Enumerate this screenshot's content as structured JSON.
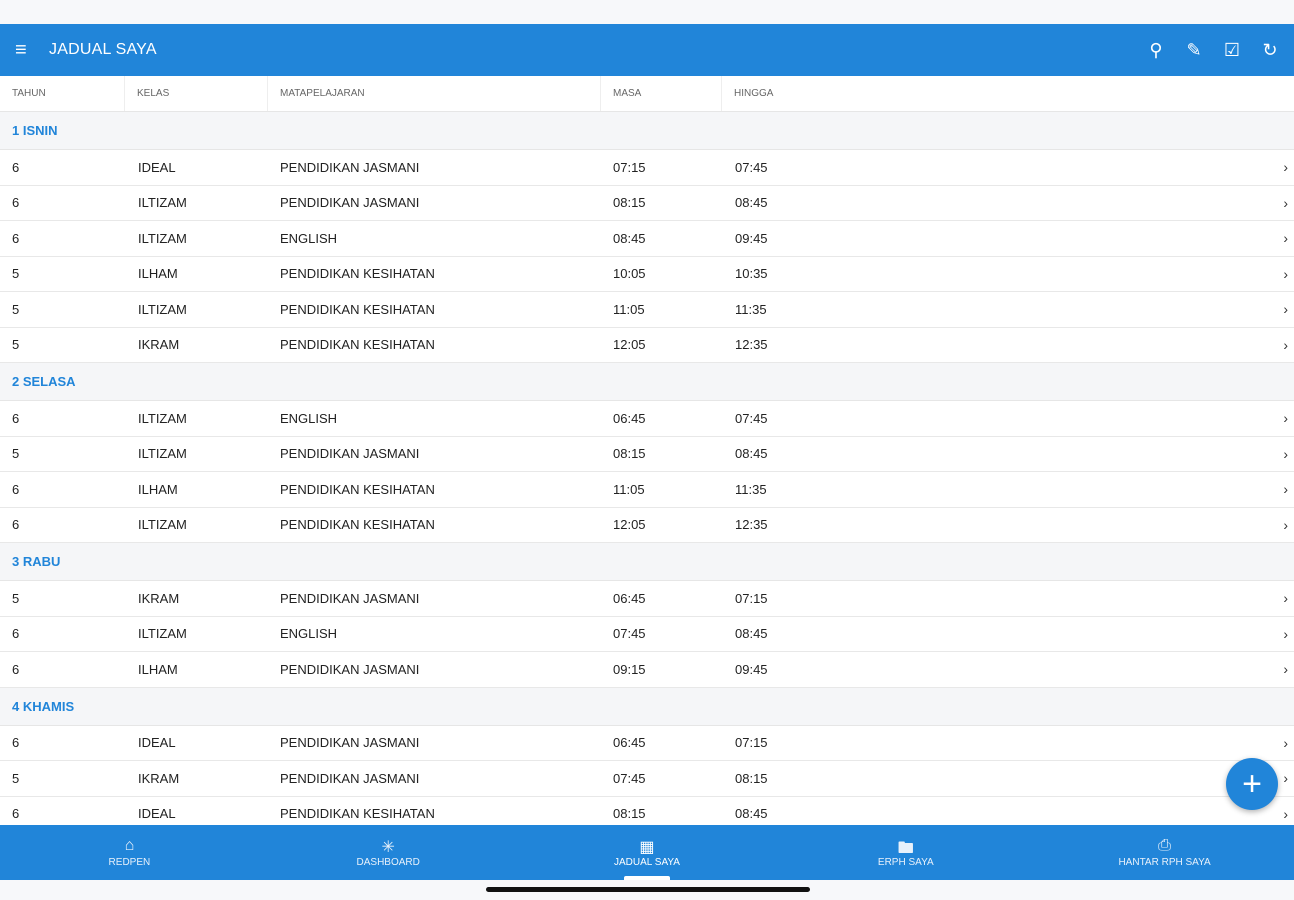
{
  "header": {
    "title": "JADUAL SAYA",
    "actions": [
      "search-icon",
      "edit-icon",
      "checkbox-icon",
      "refresh-icon"
    ]
  },
  "columns": [
    "TAHUN",
    "KELAS",
    "MATAPELAJARAN",
    "MASA",
    "HINGGA"
  ],
  "days": [
    {
      "label": "1 ISNIN",
      "rows": [
        [
          "6",
          "IDEAL",
          "PENDIDIKAN JASMANI",
          "07:15",
          "07:45"
        ],
        [
          "6",
          "ILTIZAM",
          "PENDIDIKAN JASMANI",
          "08:15",
          "08:45"
        ],
        [
          "6",
          "ILTIZAM",
          "ENGLISH",
          "08:45",
          "09:45"
        ],
        [
          "5",
          "ILHAM",
          "PENDIDIKAN KESIHATAN",
          "10:05",
          "10:35"
        ],
        [
          "5",
          "ILTIZAM",
          "PENDIDIKAN KESIHATAN",
          "11:05",
          "11:35"
        ],
        [
          "5",
          "IKRAM",
          "PENDIDIKAN KESIHATAN",
          "12:05",
          "12:35"
        ]
      ]
    },
    {
      "label": "2 SELASA",
      "rows": [
        [
          "6",
          "ILTIZAM",
          "ENGLISH",
          "06:45",
          "07:45"
        ],
        [
          "5",
          "ILTIZAM",
          "PENDIDIKAN JASMANI",
          "08:15",
          "08:45"
        ],
        [
          "6",
          "ILHAM",
          "PENDIDIKAN KESIHATAN",
          "11:05",
          "11:35"
        ],
        [
          "6",
          "ILTIZAM",
          "PENDIDIKAN KESIHATAN",
          "12:05",
          "12:35"
        ]
      ]
    },
    {
      "label": "3 RABU",
      "rows": [
        [
          "5",
          "IKRAM",
          "PENDIDIKAN JASMANI",
          "06:45",
          "07:15"
        ],
        [
          "6",
          "ILTIZAM",
          "ENGLISH",
          "07:45",
          "08:45"
        ],
        [
          "6",
          "ILHAM",
          "PENDIDIKAN JASMANI",
          "09:15",
          "09:45"
        ]
      ]
    },
    {
      "label": "4 KHAMIS",
      "rows": [
        [
          "6",
          "IDEAL",
          "PENDIDIKAN JASMANI",
          "06:45",
          "07:15"
        ],
        [
          "5",
          "IKRAM",
          "PENDIDIKAN JASMANI",
          "07:45",
          "08:15"
        ],
        [
          "6",
          "IDEAL",
          "PENDIDIKAN KESIHATAN",
          "08:15",
          "08:45"
        ]
      ]
    }
  ],
  "fab": "+",
  "nav": [
    {
      "label": "REDPEN",
      "icon": "home-icon"
    },
    {
      "label": "DASHBOARD",
      "icon": "network-icon"
    },
    {
      "label": "JADUAL SAYA",
      "icon": "calendar-icon",
      "active": true
    },
    {
      "label": "ERPH SAYA",
      "icon": "folder-icon"
    },
    {
      "label": "HANTAR RPH SAYA",
      "icon": "send-file-icon"
    }
  ],
  "colors": {
    "primary": "#2185d9"
  }
}
